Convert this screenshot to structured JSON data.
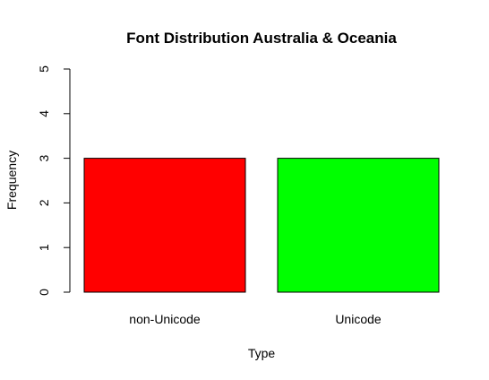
{
  "chart_data": {
    "type": "bar",
    "title": "Font Distribution Australia & Oceania",
    "xlabel": "Type",
    "ylabel": "Frequency",
    "categories": [
      "non-Unicode",
      "Unicode"
    ],
    "values": [
      3,
      3
    ],
    "colors": [
      "#ff0000",
      "#00ff00"
    ],
    "ylim": [
      0,
      5
    ],
    "yticks": [
      0,
      1,
      2,
      3,
      4,
      5
    ],
    "grid": false,
    "legend": "none"
  }
}
